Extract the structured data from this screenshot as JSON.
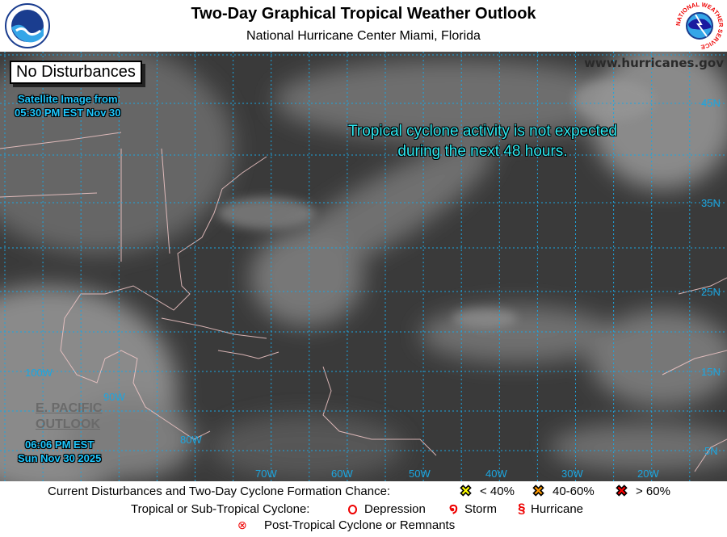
{
  "header": {
    "title": "Two-Day Graphical Tropical Weather Outlook",
    "subtitle": "National Hurricane Center  Miami, Florida",
    "left_logo": "noaa-logo",
    "right_logo": "nws-logo",
    "right_logo_text": "NATIONAL WEATHER SERVICE"
  },
  "map": {
    "status_box": "No Disturbances",
    "satellite_line1": "Satellite Image from",
    "satellite_line2": "05:30 PM EST Nov 30",
    "website": "www.hurricanes.gov",
    "message_line1": "Tropical cyclone activity is not expected",
    "message_line2": "during the next 48 hours.",
    "epac_line1": "E. PACIFIC",
    "epac_line2": "OUTLOOK",
    "time_line1": "06:06 PM EST",
    "time_line2": "Sun Nov 30 2025",
    "lat_labels": [
      "45N",
      "35N",
      "25N",
      "15N",
      "5N"
    ],
    "lon_labels": [
      "100W",
      "90W",
      "80W",
      "70W",
      "60W",
      "50W",
      "40W",
      "30W",
      "20W"
    ],
    "grid_color": "#1ca6e0"
  },
  "legend": {
    "formation_label": "Current Disturbances and Two-Day Cyclone Formation Chance:",
    "low": "< 40%",
    "medium": "40-60%",
    "high": "> 60%",
    "colors": {
      "low": "#ffff00",
      "medium": "#ff9900",
      "high": "#ff0000"
    },
    "cyclone_label": "Tropical or Sub-Tropical Cyclone:",
    "depression": "Depression",
    "storm": "Storm",
    "hurricane": "Hurricane",
    "post_tropical": "Post-Tropical Cyclone or Remnants"
  }
}
